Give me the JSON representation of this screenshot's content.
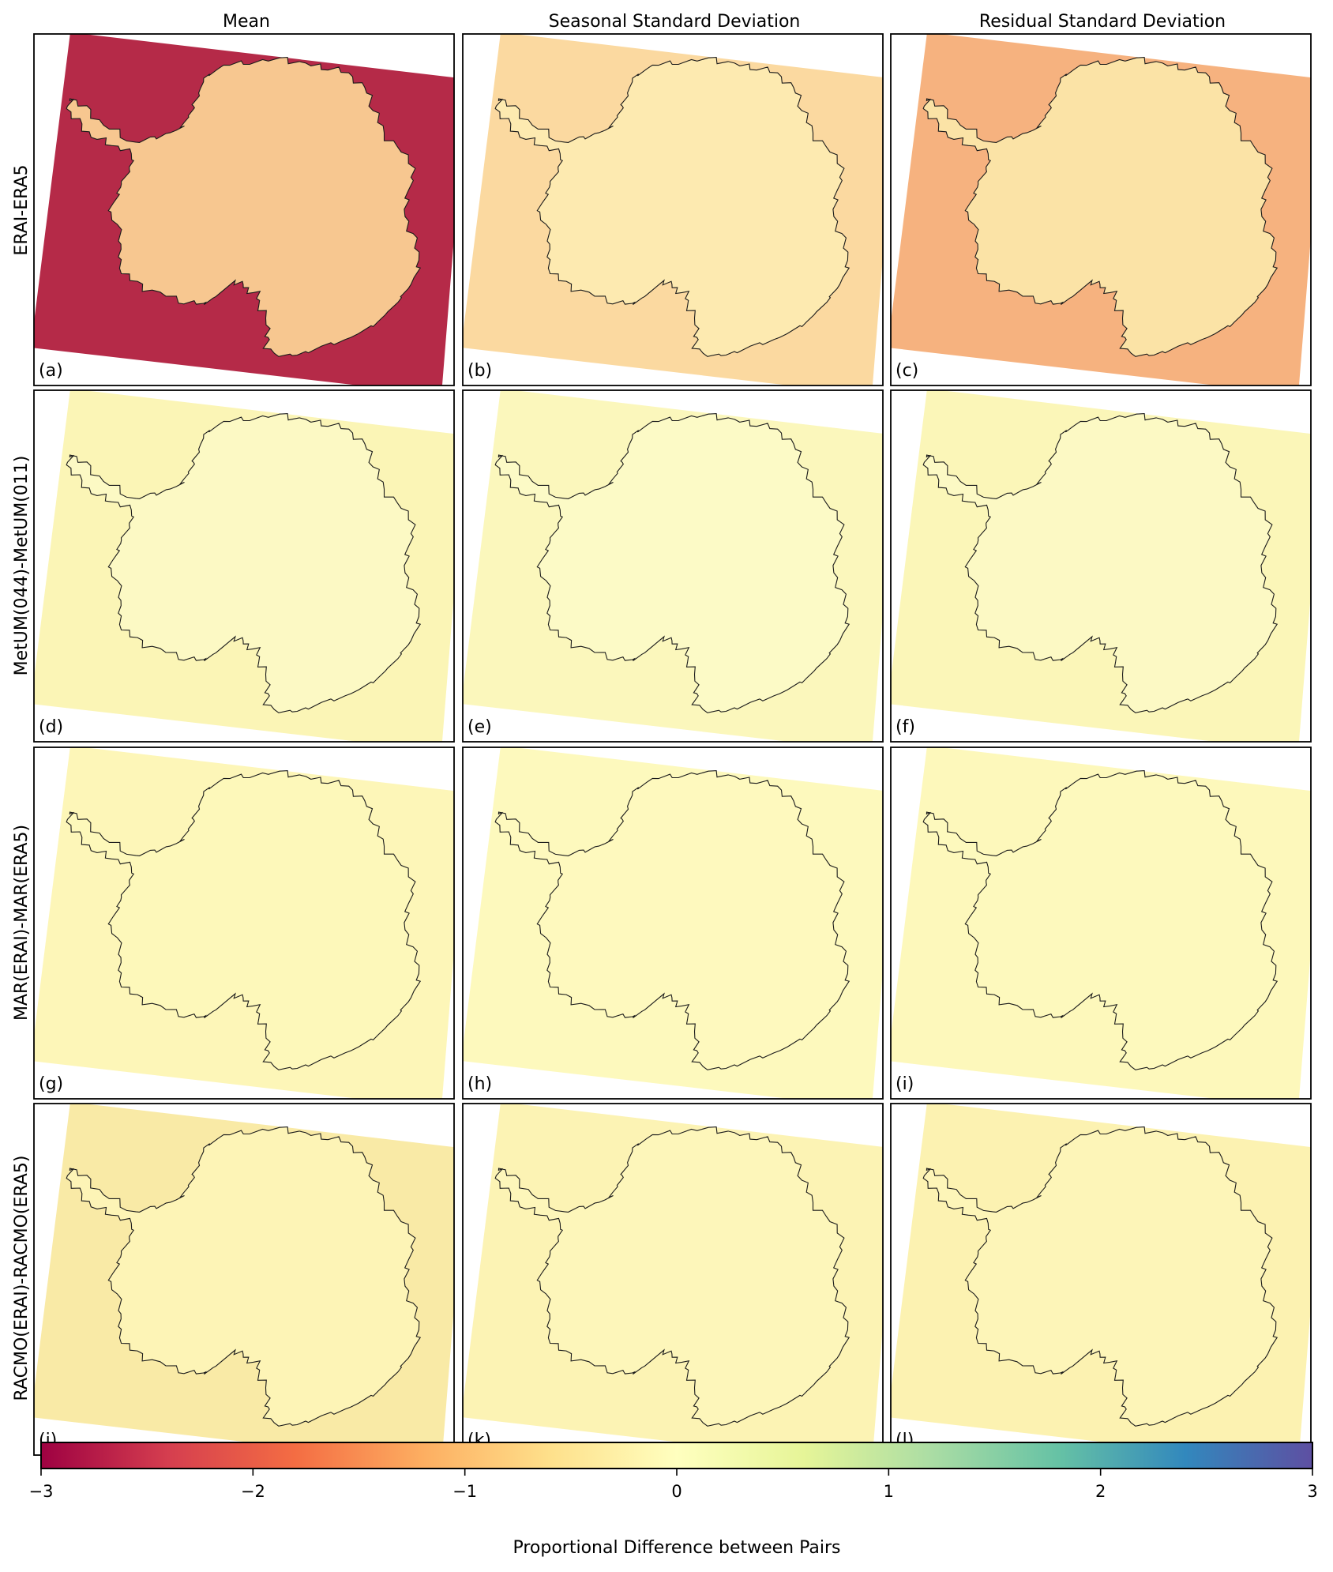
{
  "chart_data": {
    "type": "heatmap",
    "description_type": "small-multiples map panels",
    "columns": [
      "Mean",
      "Seasonal Standard Deviation",
      "Residual Standard Deviation"
    ],
    "rows": [
      "ERAI-ERA5",
      "MetUM(044)-MetUM(011)",
      "MAR(ERAI)-MAR(ERA5)",
      "RACMO(ERAI)-RACMO(ERA5)"
    ],
    "panel_labels": [
      "(a)",
      "(b)",
      "(c)",
      "(d)",
      "(e)",
      "(f)",
      "(g)",
      "(h)",
      "(i)",
      "(j)",
      "(k)",
      "(l)"
    ],
    "colorbar": {
      "label": "Proportional Difference between Pairs",
      "range": [
        -3,
        3
      ],
      "ticks": [
        -3,
        -2,
        -1,
        0,
        1,
        2,
        3
      ],
      "tick_labels": [
        "−3",
        "−2",
        "−1",
        "0",
        "1",
        "2",
        "3"
      ],
      "colormap": "Spectral",
      "colormap_stops": [
        "#9e0142",
        "#d53e4f",
        "#f46d43",
        "#fdae61",
        "#fee08b",
        "#ffffbf",
        "#e6f598",
        "#abdda4",
        "#66c2a5",
        "#3288bd",
        "#5e4fa2"
      ]
    },
    "panel_base_colors": [
      [
        "#b52a48",
        "#fbd9a0",
        "#f6b27f"
      ],
      [
        "#fbf5b6",
        "#fbf7bc",
        "#fbf6b8"
      ],
      [
        "#fdf6b8",
        "#fdf9bd",
        "#fdf8bb"
      ],
      [
        "#f9eaa6",
        "#fcf3b4",
        "#fcf2b1"
      ]
    ],
    "panel_interior_colors": [
      [
        "#f7c790",
        "#fdeab0",
        "#fbe3a6"
      ],
      [
        "#fcf9c4",
        "#fcfac6",
        "#fcf9c4"
      ],
      [
        "#fdf8ba",
        "#fef9be",
        "#fdf9bd"
      ],
      [
        "#fdf4b6",
        "#fdf6ba",
        "#fdf5b8"
      ]
    ]
  }
}
